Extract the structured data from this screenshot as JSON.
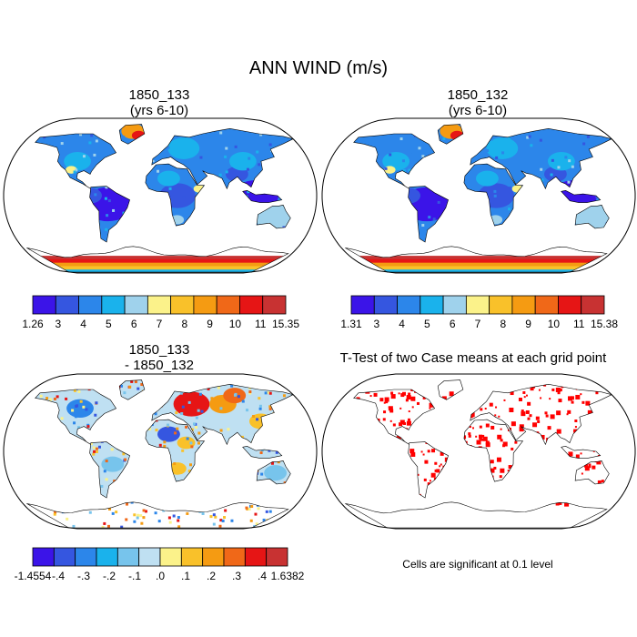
{
  "page_title": "ANN WIND (m/s)",
  "panels": [
    {
      "title_line1": "1850_133",
      "title_line2": "(yrs 6-10)"
    },
    {
      "title_line1": "1850_132",
      "title_line2": "(yrs 6-10)"
    },
    {
      "title_line1": "1850_133",
      "title_line2": "- 1850_132"
    },
    {
      "title_line1": "T-Test of two Case means at each grid point",
      "title_line2": ""
    }
  ],
  "footnote": "Cells are significant at 0.1 level",
  "chart_data": [
    {
      "type": "heatmap",
      "title": "1850_133 (yrs 6-10)",
      "variable": "ANN WIND (m/s)",
      "colorbar": {
        "tick_labels": [
          "1.26",
          "3",
          "4",
          "5",
          "6",
          "7",
          "8",
          "9",
          "10",
          "11",
          "15.35"
        ],
        "min": 1.26,
        "max": 15.35,
        "colors": [
          "#3b14e8",
          "#3556e0",
          "#2c86ea",
          "#1ab2ec",
          "#9fd2ec",
          "#fbf28a",
          "#f9c12a",
          "#f59b12",
          "#f06818",
          "#e61515",
          "#c83232"
        ]
      }
    },
    {
      "type": "heatmap",
      "title": "1850_132 (yrs 6-10)",
      "variable": "ANN WIND (m/s)",
      "colorbar": {
        "tick_labels": [
          "1.31",
          "3",
          "4",
          "5",
          "6",
          "7",
          "8",
          "9",
          "10",
          "11",
          "15.38"
        ],
        "min": 1.31,
        "max": 15.38,
        "colors": [
          "#3b14e8",
          "#3556e0",
          "#2c86ea",
          "#1ab2ec",
          "#9fd2ec",
          "#fbf28a",
          "#f9c12a",
          "#f59b12",
          "#f06818",
          "#e61515",
          "#c83232"
        ]
      }
    },
    {
      "type": "heatmap",
      "title": "1850_133 - 1850_132",
      "variable": "ANN WIND difference (m/s)",
      "colorbar": {
        "tick_labels": [
          "-1.4554",
          "-.4",
          "-.3",
          "-.2",
          "-.1",
          ".0",
          ".1",
          ".2",
          ".3",
          ".4",
          "1.6382"
        ],
        "min": -1.4554,
        "max": 1.6382,
        "colors": [
          "#3b14e8",
          "#3556e0",
          "#2c86ea",
          "#1ab2ec",
          "#77c4ec",
          "#bfe0f2",
          "#fbf28a",
          "#f9c12a",
          "#f59b12",
          "#f06818",
          "#e61515",
          "#c83232"
        ]
      }
    },
    {
      "type": "heatmap",
      "title": "T-Test of two Case means at each grid point",
      "significance_level": 0.1,
      "significant_color": "#ff0000"
    }
  ]
}
